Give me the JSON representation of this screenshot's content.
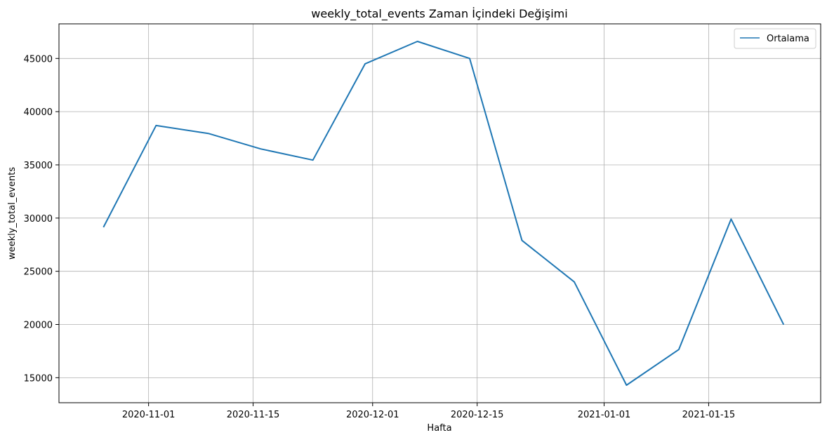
{
  "chart_data": {
    "type": "line",
    "title": "weekly_total_events Zaman İçindeki Değişimi",
    "xlabel": "Hafta",
    "ylabel": "weekly_total_events",
    "x_type": "date",
    "x": [
      "2020-10-26",
      "2020-11-02",
      "2020-11-09",
      "2020-11-16",
      "2020-11-23",
      "2020-11-30",
      "2020-12-07",
      "2020-12-14",
      "2020-12-21",
      "2020-12-28",
      "2021-01-04",
      "2021-01-11",
      "2021-01-18",
      "2021-01-25"
    ],
    "series": [
      {
        "name": "Ortalama",
        "color": "#1f77b4",
        "values": [
          29200,
          38700,
          37950,
          36500,
          35450,
          44500,
          46600,
          45000,
          27900,
          24000,
          14300,
          17650,
          29900,
          20050
        ]
      }
    ],
    "x_ticks": [
      "2020-11-01",
      "2020-11-15",
      "2020-12-01",
      "2020-12-15",
      "2021-01-01",
      "2021-01-15"
    ],
    "y_ticks": [
      15000,
      20000,
      25000,
      30000,
      35000,
      40000,
      45000
    ],
    "xlim": [
      "2020-10-20",
      "2021-01-30"
    ],
    "ylim": [
      12650,
      48250
    ],
    "grid": true,
    "legend_position": "top-right"
  }
}
